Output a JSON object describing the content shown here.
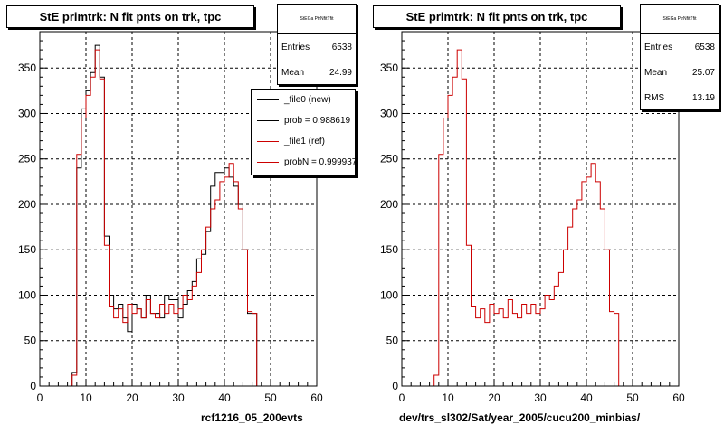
{
  "colors": {
    "new": "#000000",
    "ref": "#cc0000",
    "grid": "#000000"
  },
  "chart_data": [
    {
      "type": "histogram",
      "title": "StE primtrk: N fit pnts on trk, tpc",
      "xlabel": "rcf1216_05_200evts",
      "xlim": [
        0,
        60
      ],
      "ylim": [
        0,
        390
      ],
      "xticks": [
        0,
        10,
        20,
        30,
        40,
        50,
        60
      ],
      "yticks": [
        0,
        50,
        100,
        150,
        200,
        250,
        300,
        350
      ],
      "grid": true,
      "bin_width": 1,
      "stats": {
        "name": "StEGa PtrNfitTfit",
        "entries_label": "Entries",
        "entries": "6538",
        "mean_label": "Mean",
        "mean": "24.99"
      },
      "legend": {
        "placement": "top-right",
        "entries": [
          {
            "label": "_file0 (new)",
            "color": "#000000"
          },
          {
            "label": "prob = 0.988619",
            "color": "#000000"
          },
          {
            "label": "_file1 (ref)",
            "color": "#cc0000"
          },
          {
            "label": "probN = 0.999937",
            "color": "#cc0000"
          }
        ]
      },
      "series": [
        {
          "name": "_file0 (new)",
          "color": "#000000",
          "x": [
            0,
            1,
            2,
            3,
            4,
            5,
            6,
            7,
            8,
            9,
            10,
            11,
            12,
            13,
            14,
            15,
            16,
            17,
            18,
            19,
            20,
            21,
            22,
            23,
            24,
            25,
            26,
            27,
            28,
            29,
            30,
            31,
            32,
            33,
            34,
            35,
            36,
            37,
            38,
            39,
            40,
            41,
            42,
            43,
            44,
            45,
            46,
            47,
            48,
            49,
            50,
            51,
            52,
            53,
            54,
            55,
            56,
            57,
            58,
            59
          ],
          "values": [
            0,
            0,
            0,
            0,
            0,
            0,
            0,
            15,
            240,
            305,
            325,
            345,
            375,
            340,
            165,
            100,
            85,
            90,
            75,
            60,
            90,
            85,
            75,
            100,
            80,
            80,
            75,
            100,
            95,
            95,
            75,
            90,
            105,
            115,
            140,
            145,
            170,
            220,
            235,
            235,
            240,
            230,
            220,
            200,
            150,
            80,
            80,
            0,
            0,
            0,
            0,
            0,
            0,
            0,
            0,
            0,
            0,
            0,
            0,
            0
          ]
        },
        {
          "name": "_file1 (ref)",
          "color": "#cc0000",
          "x": [
            0,
            1,
            2,
            3,
            4,
            5,
            6,
            7,
            8,
            9,
            10,
            11,
            12,
            13,
            14,
            15,
            16,
            17,
            18,
            19,
            20,
            21,
            22,
            23,
            24,
            25,
            26,
            27,
            28,
            29,
            30,
            31,
            32,
            33,
            34,
            35,
            36,
            37,
            38,
            39,
            40,
            41,
            42,
            43,
            44,
            45,
            46,
            47,
            48,
            49,
            50,
            51,
            52,
            53,
            54,
            55,
            56,
            57,
            58,
            59
          ],
          "values": [
            0,
            0,
            0,
            0,
            0,
            0,
            0,
            12,
            255,
            295,
            320,
            340,
            370,
            338,
            155,
            88,
            75,
            85,
            70,
            90,
            80,
            85,
            75,
            95,
            80,
            75,
            90,
            80,
            90,
            80,
            85,
            100,
            95,
            110,
            125,
            150,
            175,
            195,
            205,
            225,
            230,
            245,
            225,
            195,
            150,
            82,
            80,
            0,
            0,
            0,
            0,
            0,
            0,
            0,
            0,
            0,
            0,
            0,
            0,
            0
          ]
        }
      ]
    },
    {
      "type": "histogram",
      "title": "StE primtrk: N fit pnts on trk, tpc",
      "xlabel": "dev/trs_sl302/Sat/year_2005/cucu200_minbias/",
      "xlim": [
        0,
        60
      ],
      "ylim": [
        0,
        390
      ],
      "xticks": [
        0,
        10,
        20,
        30,
        40,
        50,
        60
      ],
      "yticks": [
        0,
        50,
        100,
        150,
        200,
        250,
        300,
        350
      ],
      "grid": true,
      "bin_width": 1,
      "stats": {
        "name": "StEGa PtrNfitTfit",
        "entries_label": "Entries",
        "entries": "6538",
        "mean_label": "Mean",
        "mean": "25.07",
        "rms_label": "RMS",
        "rms": "13.19"
      },
      "series": [
        {
          "name": "",
          "color": "#cc0000",
          "x": [
            0,
            1,
            2,
            3,
            4,
            5,
            6,
            7,
            8,
            9,
            10,
            11,
            12,
            13,
            14,
            15,
            16,
            17,
            18,
            19,
            20,
            21,
            22,
            23,
            24,
            25,
            26,
            27,
            28,
            29,
            30,
            31,
            32,
            33,
            34,
            35,
            36,
            37,
            38,
            39,
            40,
            41,
            42,
            43,
            44,
            45,
            46,
            47,
            48,
            49,
            50,
            51,
            52,
            53,
            54,
            55,
            56,
            57,
            58,
            59
          ],
          "values": [
            0,
            0,
            0,
            0,
            0,
            0,
            0,
            12,
            255,
            295,
            320,
            340,
            370,
            338,
            155,
            88,
            75,
            85,
            70,
            90,
            80,
            85,
            75,
            95,
            80,
            75,
            90,
            80,
            90,
            80,
            85,
            100,
            95,
            110,
            125,
            150,
            175,
            195,
            205,
            225,
            230,
            245,
            225,
            195,
            150,
            82,
            80,
            0,
            0,
            0,
            0,
            0,
            0,
            0,
            0,
            0,
            0,
            0,
            0,
            0
          ]
        }
      ]
    }
  ]
}
